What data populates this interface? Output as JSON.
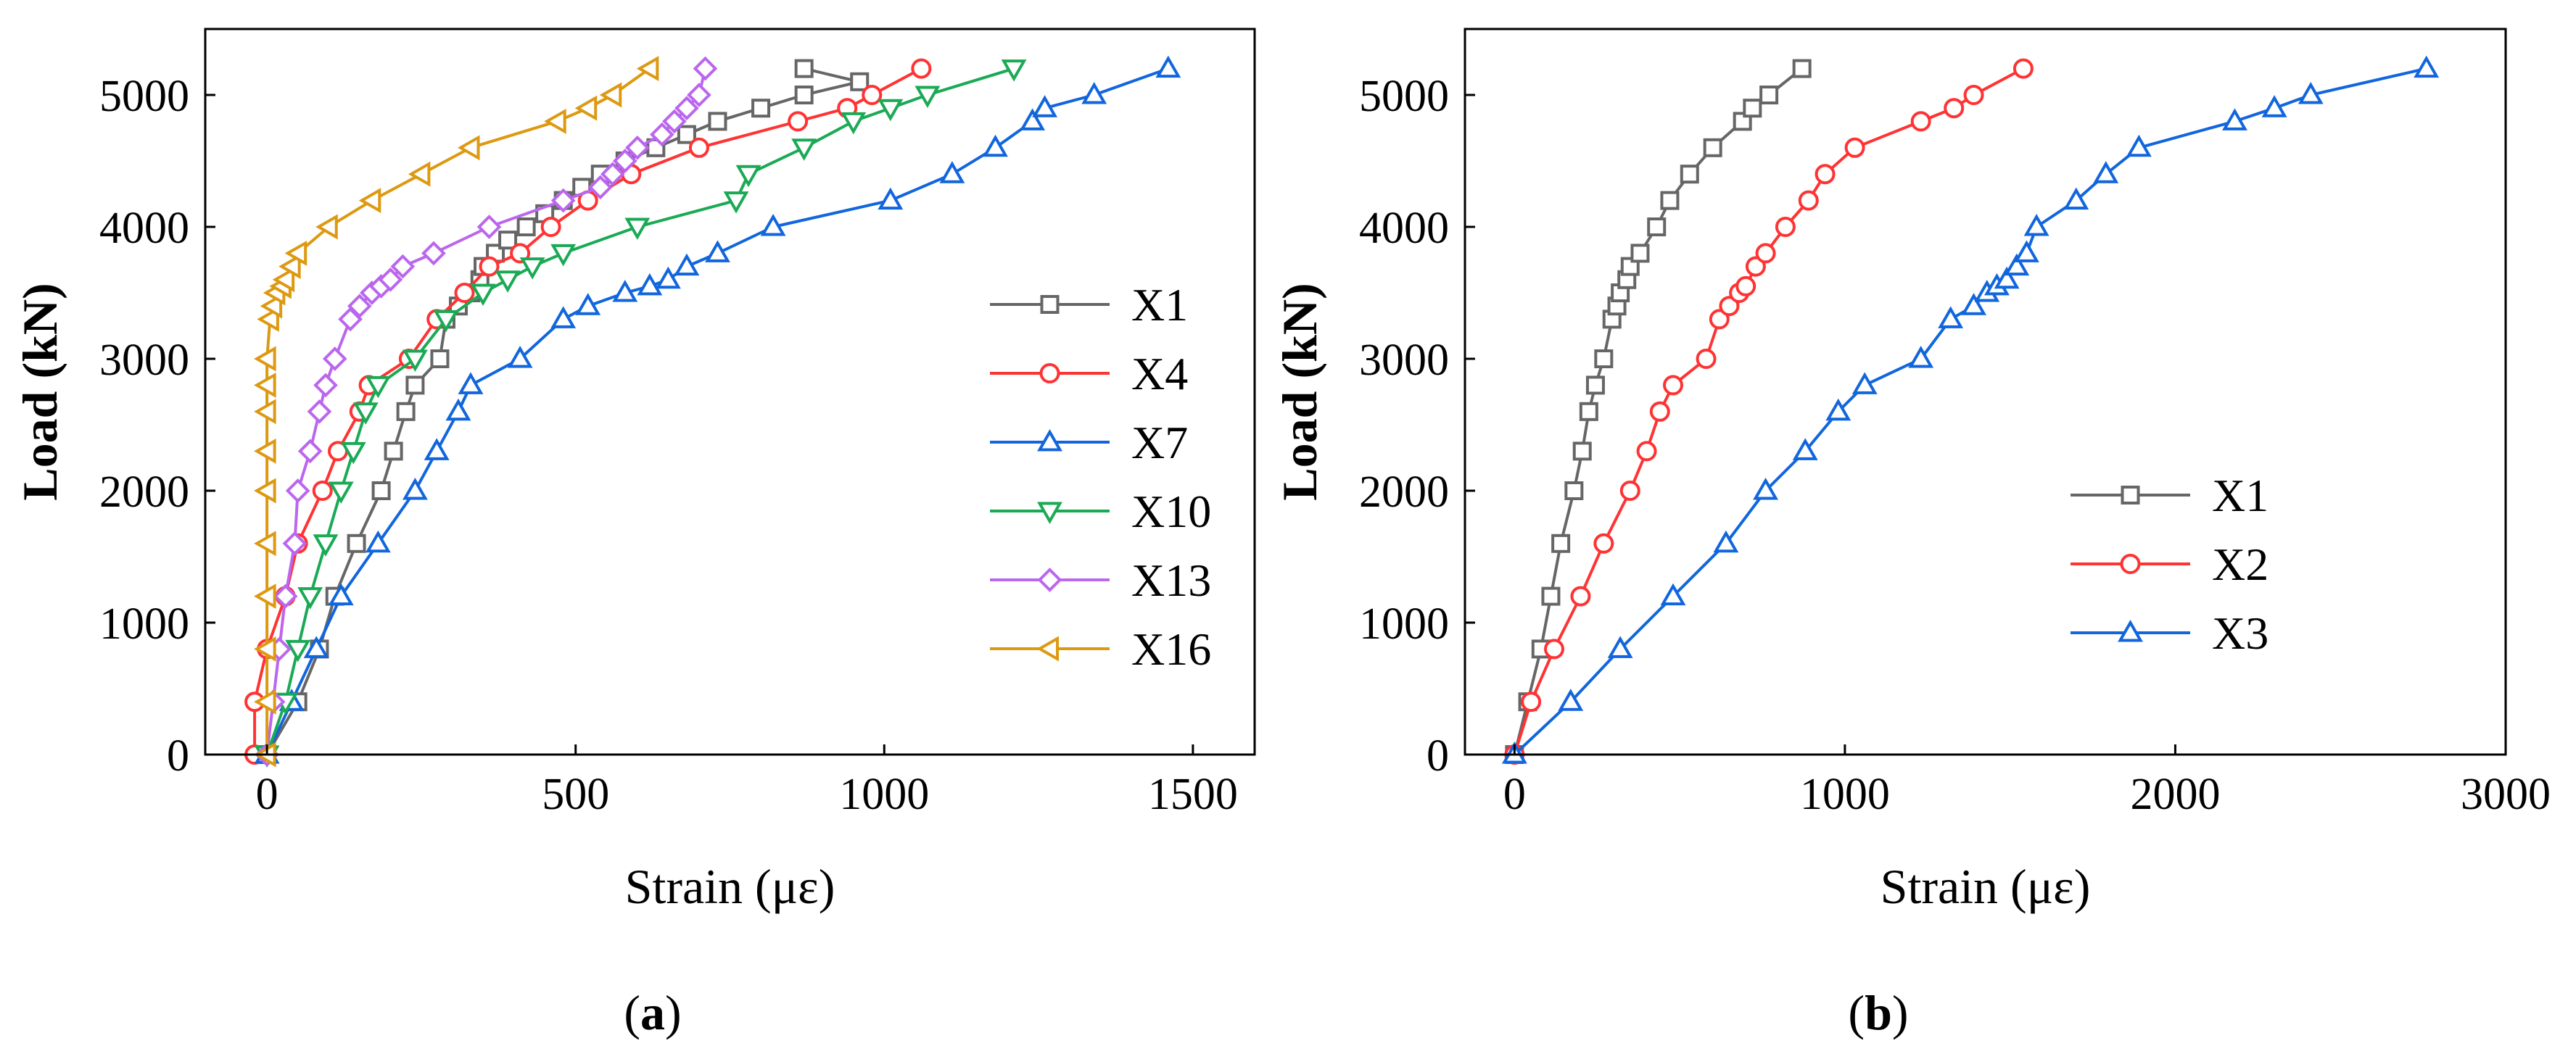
{
  "chart_data": [
    {
      "type": "line",
      "panel_label": "a",
      "xlabel": "Strain (με)",
      "ylabel": "Load (kN)",
      "xlim": [
        -100,
        1600
      ],
      "ylim": [
        0,
        5500
      ],
      "xticks": [
        0,
        500,
        1000,
        1500
      ],
      "yticks": [
        0,
        1000,
        2000,
        3000,
        4000,
        5000
      ],
      "xtick_labels": [
        "0",
        "500",
        "1000",
        "1500"
      ],
      "ytick_labels": [
        "0",
        "1000",
        "2000",
        "3000",
        "4000",
        "5000"
      ],
      "legend_position": "right",
      "series": [
        {
          "name": "X1",
          "color": "#666666",
          "marker": "square",
          "points": [
            [
              0,
              0
            ],
            [
              50,
              400
            ],
            [
              85,
              800
            ],
            [
              110,
              1200
            ],
            [
              145,
              1600
            ],
            [
              185,
              2000
            ],
            [
              205,
              2300
            ],
            [
              225,
              2600
            ],
            [
              240,
              2800
            ],
            [
              280,
              3000
            ],
            [
              290,
              3300
            ],
            [
              310,
              3400
            ],
            [
              330,
              3500
            ],
            [
              345,
              3600
            ],
            [
              350,
              3700
            ],
            [
              370,
              3800
            ],
            [
              390,
              3900
            ],
            [
              420,
              4000
            ],
            [
              450,
              4100
            ],
            [
              480,
              4200
            ],
            [
              510,
              4300
            ],
            [
              540,
              4400
            ],
            [
              580,
              4500
            ],
            [
              630,
              4600
            ],
            [
              680,
              4700
            ],
            [
              730,
              4800
            ],
            [
              800,
              4900
            ],
            [
              870,
              5000
            ],
            [
              960,
              5100
            ],
            [
              870,
              5200
            ]
          ]
        },
        {
          "name": "X4",
          "color": "#ff3333",
          "marker": "circle",
          "points": [
            [
              -20,
              0
            ],
            [
              -20,
              400
            ],
            [
              0,
              800
            ],
            [
              30,
              1200
            ],
            [
              50,
              1600
            ],
            [
              90,
              2000
            ],
            [
              115,
              2300
            ],
            [
              150,
              2600
            ],
            [
              165,
              2800
            ],
            [
              230,
              3000
            ],
            [
              275,
              3300
            ],
            [
              320,
              3500
            ],
            [
              360,
              3700
            ],
            [
              410,
              3800
            ],
            [
              460,
              4000
            ],
            [
              520,
              4200
            ],
            [
              590,
              4400
            ],
            [
              700,
              4600
            ],
            [
              860,
              4800
            ],
            [
              940,
              4900
            ],
            [
              980,
              5000
            ],
            [
              1060,
              5200
            ]
          ]
        },
        {
          "name": "X7",
          "color": "#1166dd",
          "marker": "triangle-up",
          "points": [
            [
              0,
              0
            ],
            [
              40,
              400
            ],
            [
              80,
              800
            ],
            [
              120,
              1200
            ],
            [
              180,
              1600
            ],
            [
              240,
              2000
            ],
            [
              275,
              2300
            ],
            [
              310,
              2600
            ],
            [
              330,
              2800
            ],
            [
              410,
              3000
            ],
            [
              480,
              3300
            ],
            [
              520,
              3400
            ],
            [
              580,
              3500
            ],
            [
              620,
              3550
            ],
            [
              650,
              3600
            ],
            [
              680,
              3700
            ],
            [
              730,
              3800
            ],
            [
              820,
              4000
            ],
            [
              1010,
              4200
            ],
            [
              1110,
              4400
            ],
            [
              1180,
              4600
            ],
            [
              1240,
              4800
            ],
            [
              1260,
              4900
            ],
            [
              1340,
              5000
            ],
            [
              1460,
              5200
            ]
          ]
        },
        {
          "name": "X10",
          "color": "#1aaa55",
          "marker": "triangle-down",
          "points": [
            [
              0,
              0
            ],
            [
              30,
              400
            ],
            [
              50,
              800
            ],
            [
              70,
              1200
            ],
            [
              95,
              1600
            ],
            [
              120,
              2000
            ],
            [
              140,
              2300
            ],
            [
              160,
              2600
            ],
            [
              180,
              2800
            ],
            [
              240,
              3000
            ],
            [
              290,
              3300
            ],
            [
              350,
              3500
            ],
            [
              390,
              3600
            ],
            [
              430,
              3700
            ],
            [
              480,
              3800
            ],
            [
              600,
              4000
            ],
            [
              760,
              4200
            ],
            [
              780,
              4400
            ],
            [
              870,
              4600
            ],
            [
              950,
              4800
            ],
            [
              1010,
              4900
            ],
            [
              1070,
              5000
            ],
            [
              1210,
              5200
            ]
          ]
        },
        {
          "name": "X13",
          "color": "#bb66ee",
          "marker": "diamond",
          "points": [
            [
              0,
              0
            ],
            [
              10,
              400
            ],
            [
              20,
              800
            ],
            [
              30,
              1200
            ],
            [
              45,
              1600
            ],
            [
              50,
              2000
            ],
            [
              70,
              2300
            ],
            [
              85,
              2600
            ],
            [
              95,
              2800
            ],
            [
              110,
              3000
            ],
            [
              135,
              3300
            ],
            [
              150,
              3400
            ],
            [
              170,
              3500
            ],
            [
              185,
              3550
            ],
            [
              200,
              3600
            ],
            [
              220,
              3700
            ],
            [
              270,
              3800
            ],
            [
              360,
              4000
            ],
            [
              480,
              4200
            ],
            [
              540,
              4300
            ],
            [
              560,
              4400
            ],
            [
              580,
              4500
            ],
            [
              600,
              4600
            ],
            [
              640,
              4700
            ],
            [
              660,
              4800
            ],
            [
              680,
              4900
            ],
            [
              700,
              5000
            ],
            [
              710,
              5200
            ]
          ]
        },
        {
          "name": "X16",
          "color": "#dd9911",
          "marker": "triangle-left",
          "points": [
            [
              0,
              0
            ],
            [
              0,
              400
            ],
            [
              0,
              800
            ],
            [
              0,
              1200
            ],
            [
              0,
              1600
            ],
            [
              0,
              2000
            ],
            [
              0,
              2300
            ],
            [
              0,
              2600
            ],
            [
              0,
              2800
            ],
            [
              0,
              3000
            ],
            [
              5,
              3300
            ],
            [
              10,
              3400
            ],
            [
              15,
              3500
            ],
            [
              25,
              3550
            ],
            [
              30,
              3600
            ],
            [
              40,
              3700
            ],
            [
              50,
              3800
            ],
            [
              100,
              4000
            ],
            [
              170,
              4200
            ],
            [
              250,
              4400
            ],
            [
              330,
              4600
            ],
            [
              470,
              4800
            ],
            [
              520,
              4900
            ],
            [
              560,
              5000
            ],
            [
              620,
              5200
            ]
          ]
        }
      ]
    },
    {
      "type": "line",
      "panel_label": "b",
      "xlabel": "Strain (με)",
      "ylabel": "Load (kN)",
      "xlim": [
        -150,
        3000
      ],
      "ylim": [
        0,
        5500
      ],
      "xticks": [
        0,
        1000,
        2000,
        3000
      ],
      "yticks": [
        0,
        1000,
        2000,
        3000,
        4000,
        5000
      ],
      "xtick_labels": [
        "0",
        "1000",
        "2000",
        "3000"
      ],
      "ytick_labels": [
        "0",
        "1000",
        "2000",
        "3000",
        "4000",
        "5000"
      ],
      "legend_position": "right",
      "series": [
        {
          "name": "X1",
          "color": "#666666",
          "marker": "square",
          "points": [
            [
              0,
              0
            ],
            [
              40,
              400
            ],
            [
              80,
              800
            ],
            [
              110,
              1200
            ],
            [
              140,
              1600
            ],
            [
              180,
              2000
            ],
            [
              205,
              2300
            ],
            [
              225,
              2600
            ],
            [
              245,
              2800
            ],
            [
              270,
              3000
            ],
            [
              295,
              3300
            ],
            [
              310,
              3400
            ],
            [
              320,
              3500
            ],
            [
              340,
              3600
            ],
            [
              350,
              3700
            ],
            [
              380,
              3800
            ],
            [
              430,
              4000
            ],
            [
              470,
              4200
            ],
            [
              530,
              4400
            ],
            [
              600,
              4600
            ],
            [
              690,
              4800
            ],
            [
              720,
              4900
            ],
            [
              770,
              5000
            ],
            [
              870,
              5200
            ]
          ]
        },
        {
          "name": "X2",
          "color": "#ff3333",
          "marker": "circle",
          "points": [
            [
              0,
              0
            ],
            [
              50,
              400
            ],
            [
              120,
              800
            ],
            [
              200,
              1200
            ],
            [
              270,
              1600
            ],
            [
              350,
              2000
            ],
            [
              400,
              2300
            ],
            [
              440,
              2600
            ],
            [
              480,
              2800
            ],
            [
              580,
              3000
            ],
            [
              620,
              3300
            ],
            [
              650,
              3400
            ],
            [
              680,
              3500
            ],
            [
              700,
              3550
            ],
            [
              730,
              3700
            ],
            [
              760,
              3800
            ],
            [
              820,
              4000
            ],
            [
              890,
              4200
            ],
            [
              940,
              4400
            ],
            [
              1030,
              4600
            ],
            [
              1230,
              4800
            ],
            [
              1330,
              4900
            ],
            [
              1390,
              5000
            ],
            [
              1540,
              5200
            ]
          ]
        },
        {
          "name": "X3",
          "color": "#1166dd",
          "marker": "triangle-up",
          "points": [
            [
              0,
              0
            ],
            [
              170,
              400
            ],
            [
              320,
              800
            ],
            [
              480,
              1200
            ],
            [
              640,
              1600
            ],
            [
              760,
              2000
            ],
            [
              880,
              2300
            ],
            [
              980,
              2600
            ],
            [
              1060,
              2800
            ],
            [
              1230,
              3000
            ],
            [
              1320,
              3300
            ],
            [
              1390,
              3400
            ],
            [
              1430,
              3500
            ],
            [
              1460,
              3550
            ],
            [
              1490,
              3600
            ],
            [
              1520,
              3700
            ],
            [
              1550,
              3800
            ],
            [
              1580,
              4000
            ],
            [
              1700,
              4200
            ],
            [
              1790,
              4400
            ],
            [
              1890,
              4600
            ],
            [
              2180,
              4800
            ],
            [
              2300,
              4900
            ],
            [
              2410,
              5000
            ],
            [
              2760,
              5200
            ]
          ]
        }
      ]
    }
  ]
}
